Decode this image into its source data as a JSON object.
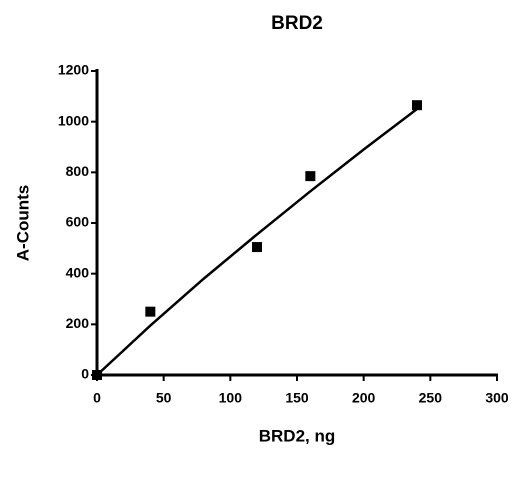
{
  "chart_data": {
    "type": "scatter",
    "title": "BRD2",
    "x_label": "BRD2, ng",
    "y_label": "A-Counts",
    "x": [
      0,
      40,
      120,
      160,
      240
    ],
    "series": [
      {
        "color": "#000000",
        "values": [
          0,
          250,
          505,
          785,
          1065
        ]
      }
    ],
    "fit": {
      "color": "#000000",
      "x": [
        0,
        40,
        80,
        120,
        160,
        200,
        240
      ],
      "values": [
        0,
        195,
        380,
        555,
        725,
        890,
        1050
      ]
    },
    "xlim": [
      0,
      300
    ],
    "xticks": [
      0,
      50,
      100,
      150,
      200,
      250,
      300
    ],
    "ylim": [
      0,
      1200
    ],
    "yticks": [
      0,
      200,
      400,
      600,
      800,
      1000,
      1200
    ],
    "grid": false
  }
}
